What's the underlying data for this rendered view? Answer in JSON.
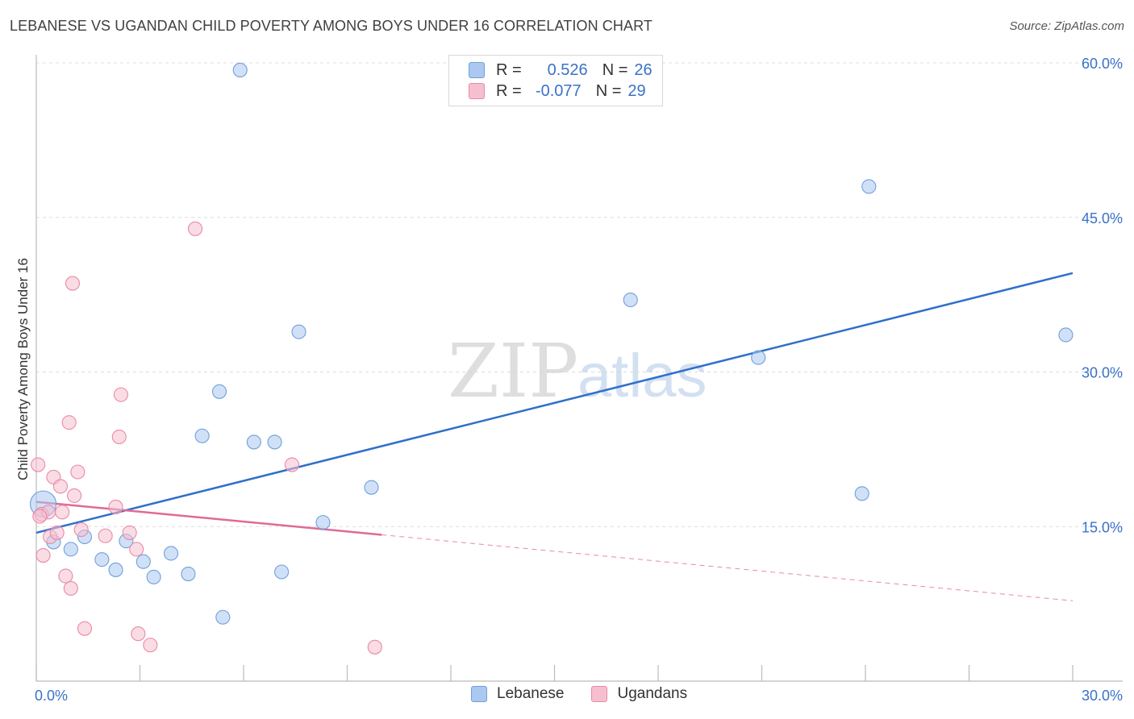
{
  "header": {
    "title": "LEBANESE VS UGANDAN CHILD POVERTY AMONG BOYS UNDER 16 CORRELATION CHART",
    "source": "Source: ZipAtlas.com"
  },
  "watermark": {
    "zip": "ZIP",
    "atlas": "atlas"
  },
  "legend": {
    "rows": [
      {
        "r_label": "R =",
        "r_value": "0.526",
        "n_label": "N =",
        "n_value": "26"
      },
      {
        "r_label": "R =",
        "r_value": "-0.077",
        "n_label": "N =",
        "n_value": "29"
      }
    ]
  },
  "bottom_legend": {
    "series1": "Lebanese",
    "series2": "Ugandans"
  },
  "colors": {
    "lebanese_fill": "#aac8f0",
    "lebanese_stroke": "#6f9fdc",
    "lebanese_line": "#2f6fcb",
    "ugandan_fill": "#f6bfd0",
    "ugandan_stroke": "#e88aa8",
    "ugandan_line": "#e06a96",
    "axis_label": "#3a72c8",
    "grid": "#dcdcdc"
  },
  "chart_data": {
    "type": "scatter",
    "title": "LEBANESE VS UGANDAN CHILD POVERTY AMONG BOYS UNDER 16 CORRELATION CHART",
    "xlabel": "",
    "ylabel": "Child Poverty Among Boys Under 16",
    "xlim": [
      0,
      30
    ],
    "ylim": [
      0,
      60
    ],
    "x_tick_labels": [
      "0.0%",
      "30.0%"
    ],
    "y_ticks": [
      15,
      30,
      45,
      60
    ],
    "y_tick_labels": [
      "15.0%",
      "30.0%",
      "45.0%",
      "60.0%"
    ],
    "grid": true,
    "series": [
      {
        "name": "Lebanese",
        "r": 0.526,
        "n": 26,
        "trend": {
          "x": [
            0,
            30
          ],
          "y": [
            14.4,
            39.6
          ]
        },
        "points": [
          {
            "x": 0.2,
            "y": 17.2
          },
          {
            "x": 0.5,
            "y": 13.5
          },
          {
            "x": 1.0,
            "y": 12.8
          },
          {
            "x": 1.4,
            "y": 14.0
          },
          {
            "x": 1.9,
            "y": 11.8
          },
          {
            "x": 2.3,
            "y": 10.8
          },
          {
            "x": 2.6,
            "y": 13.6
          },
          {
            "x": 3.1,
            "y": 11.6
          },
          {
            "x": 3.4,
            "y": 10.1
          },
          {
            "x": 3.9,
            "y": 12.4
          },
          {
            "x": 4.4,
            "y": 10.4
          },
          {
            "x": 4.8,
            "y": 23.8
          },
          {
            "x": 5.3,
            "y": 28.1
          },
          {
            "x": 5.4,
            "y": 6.2
          },
          {
            "x": 5.9,
            "y": 59.3
          },
          {
            "x": 6.3,
            "y": 23.2
          },
          {
            "x": 6.9,
            "y": 23.2
          },
          {
            "x": 7.1,
            "y": 10.6
          },
          {
            "x": 7.6,
            "y": 33.9
          },
          {
            "x": 8.3,
            "y": 15.4
          },
          {
            "x": 9.7,
            "y": 18.8
          },
          {
            "x": 17.2,
            "y": 37.0
          },
          {
            "x": 20.9,
            "y": 31.4
          },
          {
            "x": 23.9,
            "y": 18.2
          },
          {
            "x": 24.1,
            "y": 48.0
          },
          {
            "x": 29.8,
            "y": 33.6
          }
        ]
      },
      {
        "name": "Ugandans",
        "r": -0.077,
        "n": 29,
        "trend": {
          "x": [
            0,
            10.0
          ],
          "y": [
            17.4,
            14.2
          ]
        },
        "trend_extension": {
          "x": [
            10.0,
            30
          ],
          "y": [
            14.2,
            7.8
          ]
        },
        "points": [
          {
            "x": 0.05,
            "y": 21.0
          },
          {
            "x": 0.15,
            "y": 16.2
          },
          {
            "x": 0.2,
            "y": 12.2
          },
          {
            "x": 0.35,
            "y": 16.4
          },
          {
            "x": 0.4,
            "y": 14.0
          },
          {
            "x": 0.5,
            "y": 19.8
          },
          {
            "x": 0.6,
            "y": 14.4
          },
          {
            "x": 0.7,
            "y": 18.9
          },
          {
            "x": 0.75,
            "y": 16.4
          },
          {
            "x": 0.85,
            "y": 10.2
          },
          {
            "x": 0.95,
            "y": 25.1
          },
          {
            "x": 1.0,
            "y": 9.0
          },
          {
            "x": 1.05,
            "y": 38.6
          },
          {
            "x": 1.1,
            "y": 18.0
          },
          {
            "x": 1.2,
            "y": 20.3
          },
          {
            "x": 1.3,
            "y": 14.7
          },
          {
            "x": 1.4,
            "y": 5.1
          },
          {
            "x": 2.0,
            "y": 14.1
          },
          {
            "x": 2.3,
            "y": 16.9
          },
          {
            "x": 2.4,
            "y": 23.7
          },
          {
            "x": 2.45,
            "y": 27.8
          },
          {
            "x": 2.7,
            "y": 14.4
          },
          {
            "x": 2.9,
            "y": 12.8
          },
          {
            "x": 2.95,
            "y": 4.6
          },
          {
            "x": 3.3,
            "y": 3.5
          },
          {
            "x": 4.6,
            "y": 43.9
          },
          {
            "x": 7.4,
            "y": 21.0
          },
          {
            "x": 9.8,
            "y": 3.3
          },
          {
            "x": 0.1,
            "y": 16.0
          }
        ]
      }
    ]
  }
}
